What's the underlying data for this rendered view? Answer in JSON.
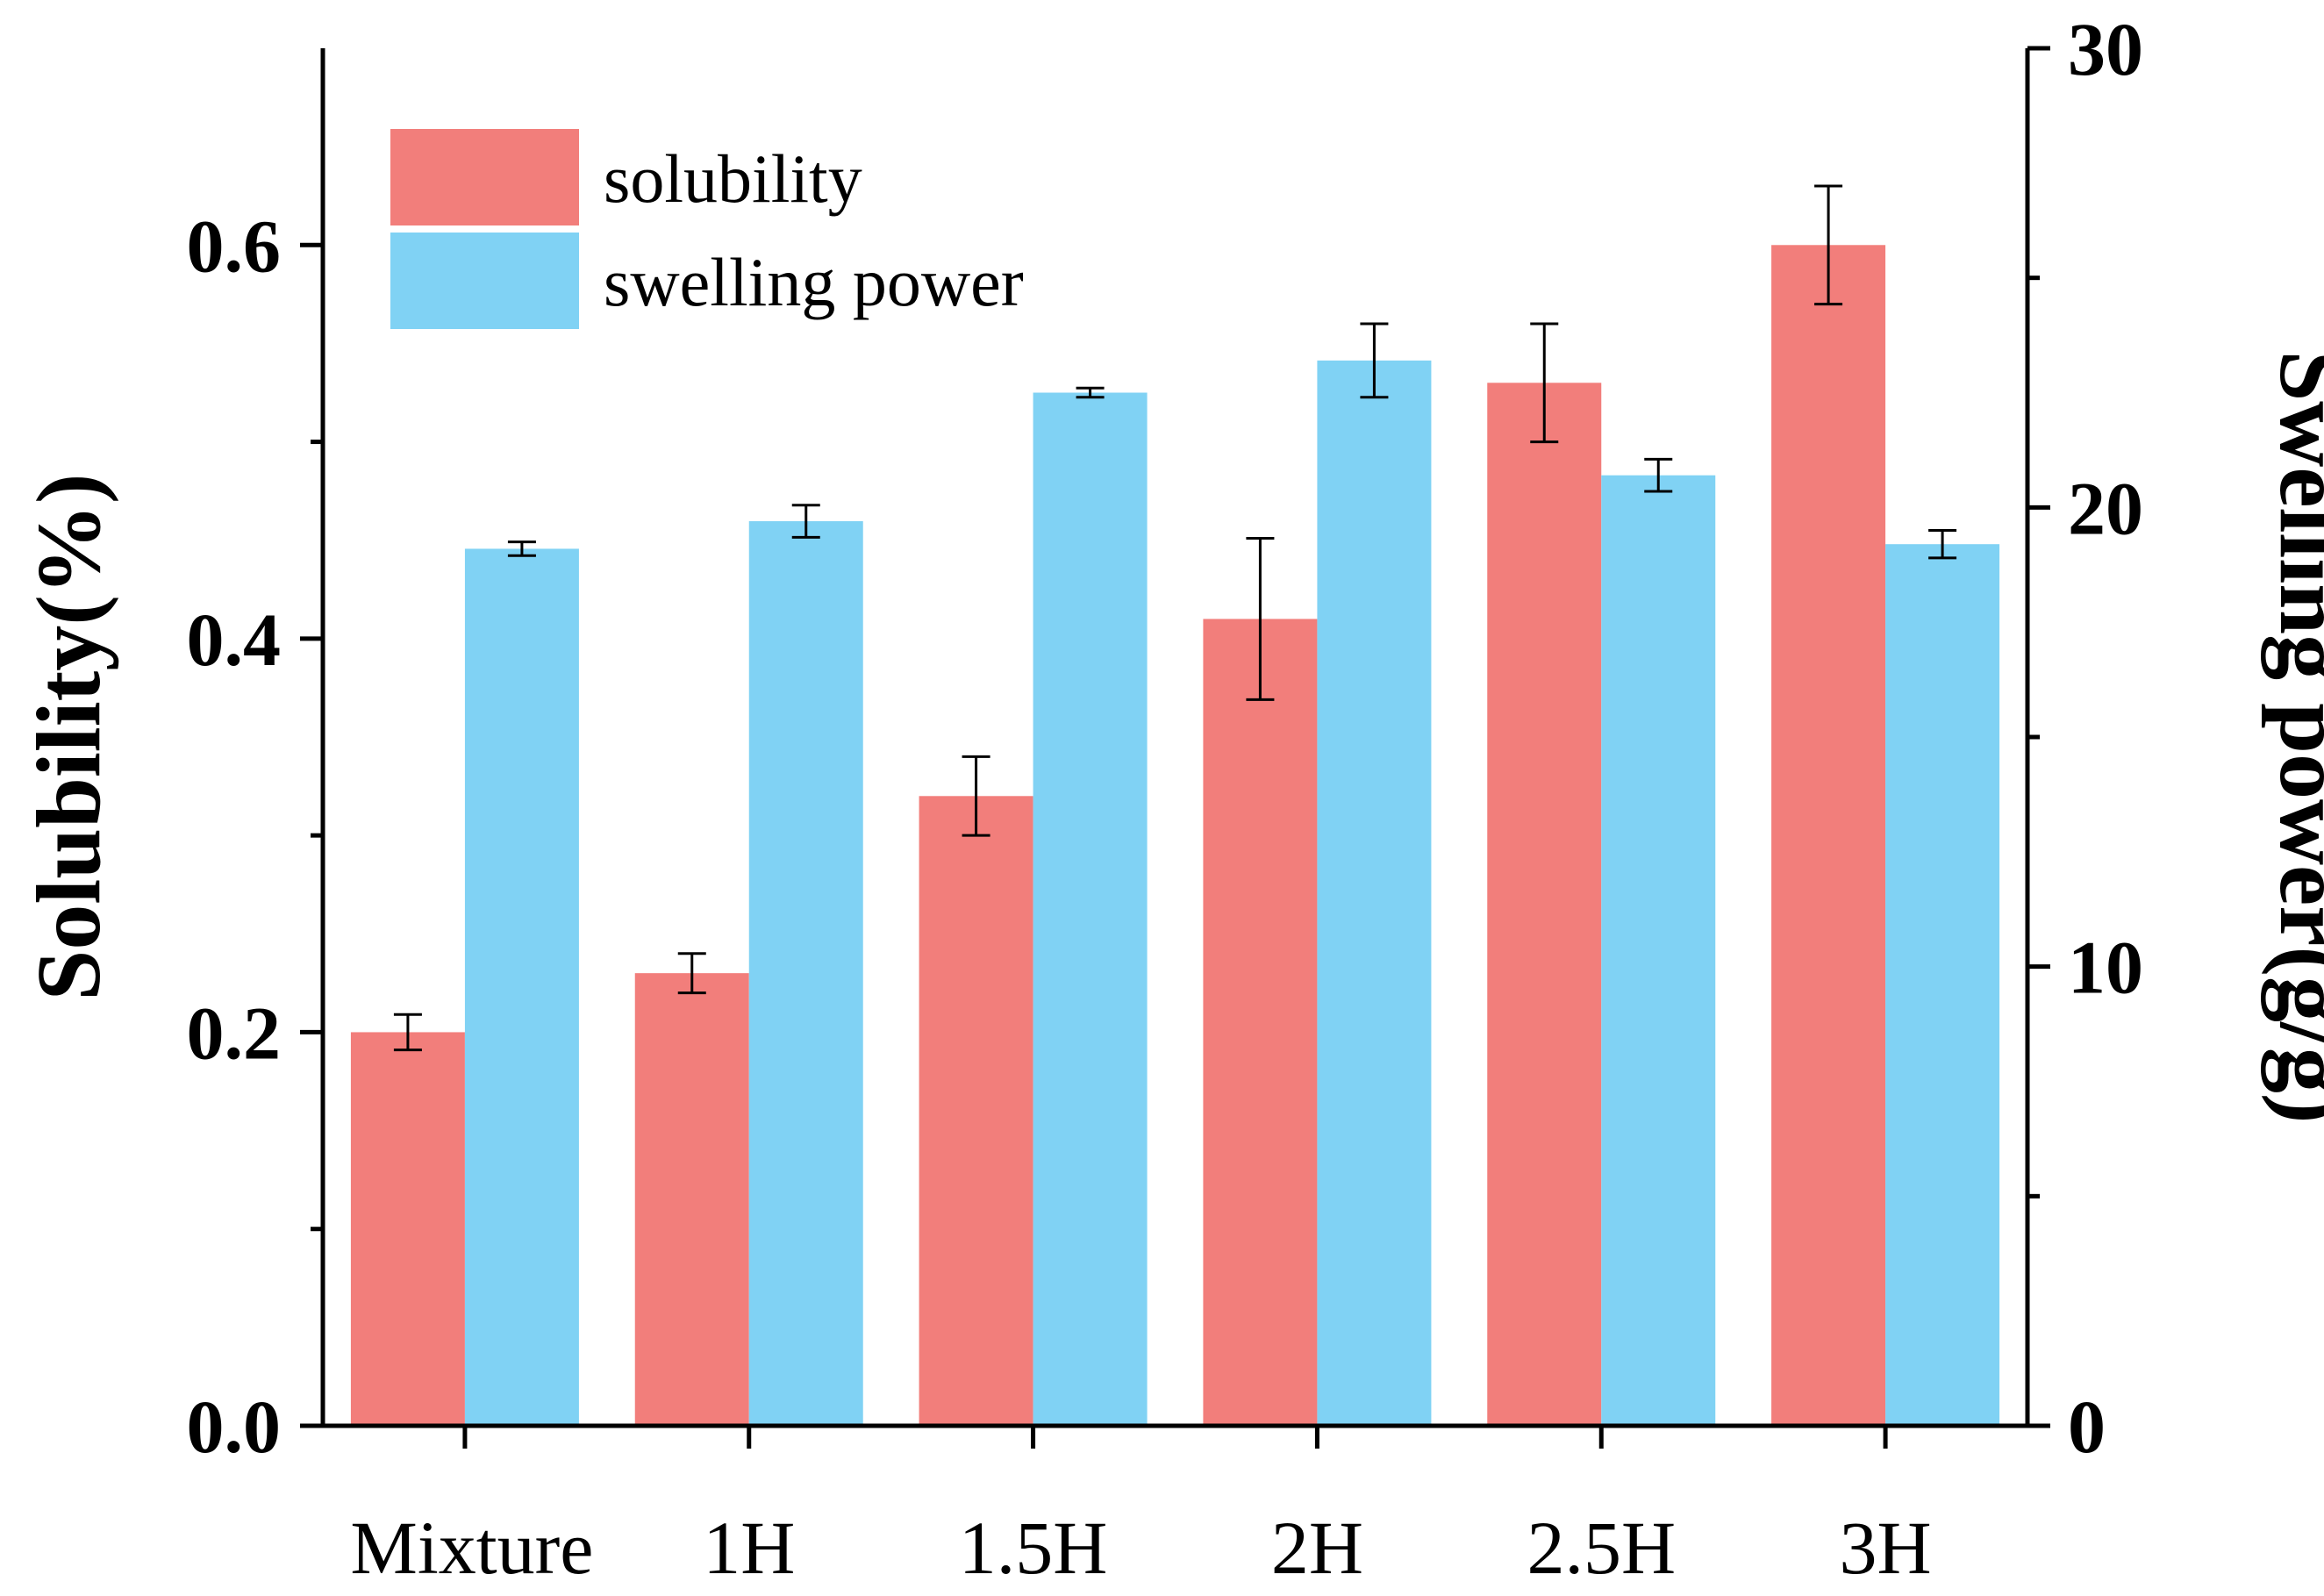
{
  "chart_data": {
    "type": "bar",
    "categories": [
      "Mixture",
      "1H",
      "1.5H",
      "2H",
      "2.5H",
      "3H"
    ],
    "series": [
      {
        "name": "solubility",
        "axis": "left",
        "color": "#F27E7B",
        "values": [
          0.2,
          0.23,
          0.32,
          0.41,
          0.53,
          0.6
        ],
        "errors": [
          0.009,
          0.01,
          0.02,
          0.041,
          0.03,
          0.03
        ]
      },
      {
        "name": "swelling power",
        "axis": "right",
        "color": "#80D2F4",
        "values": [
          19.1,
          19.7,
          22.5,
          23.2,
          20.7,
          19.2
        ],
        "errors": [
          0.15,
          0.35,
          0.1,
          0.8,
          0.35,
          0.3
        ]
      }
    ],
    "yleft": {
      "label": "Solubility(%)",
      "ylim": [
        0,
        0.7
      ],
      "ticks": [
        0.0,
        0.2,
        0.4,
        0.6
      ],
      "tick_labels": [
        "0.0",
        "0.2",
        "0.4",
        "0.6"
      ],
      "minor_ticks": [
        0.1,
        0.3,
        0.5
      ]
    },
    "yright": {
      "label": "Swelling power(g/g)",
      "ylim": [
        0,
        30
      ],
      "ticks": [
        0,
        10,
        20,
        30
      ],
      "tick_labels": [
        "0",
        "10",
        "20",
        "30"
      ],
      "minor_ticks": [
        5,
        15,
        25
      ]
    },
    "legend": {
      "position": "top-left",
      "entries": [
        "solubility",
        "swelling power"
      ]
    },
    "grid": false
  }
}
